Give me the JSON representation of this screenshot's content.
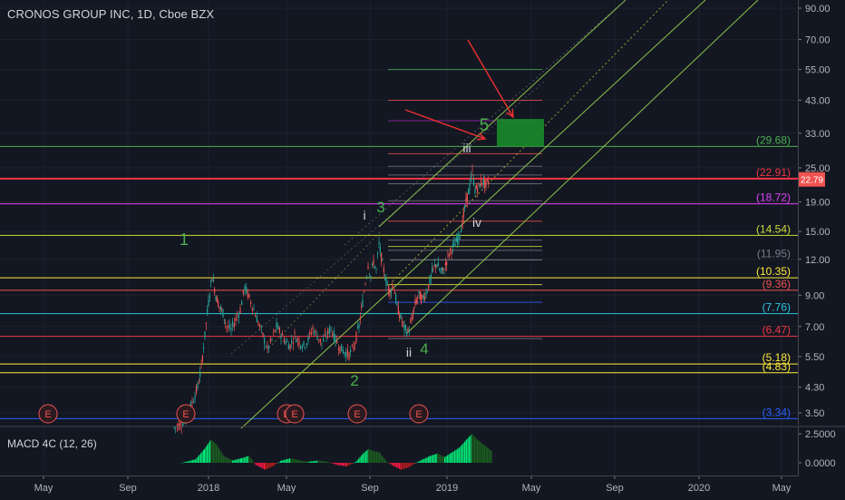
{
  "header": {
    "title": "CRONOS GROUP INC, 1D, Cboe BZX"
  },
  "macd_panel": {
    "title": "MACD 4C (12, 26)",
    "ticks": [
      "2.5000",
      "0.0000"
    ]
  },
  "colors": {
    "background": "#131722",
    "candle_up": "#26a69a",
    "candle_down": "#ef5350",
    "channel": "#8bc34a",
    "target_box": "#1b8a2a",
    "arrow": "#ef2f2f",
    "last_price_badge": "#ef5350"
  },
  "chart_data": {
    "type": "candlestick",
    "scale": "log",
    "price_axis_ticks": [
      "90.00",
      "70.00",
      "55.00",
      "43.00",
      "33.00",
      "25.00",
      "19.00",
      "15.00",
      "12.00",
      "9.00",
      "7.00",
      "5.50",
      "4.30",
      "3.50"
    ],
    "time_axis_ticks": [
      "May",
      "Sep",
      "2018",
      "May",
      "Sep",
      "2019",
      "May",
      "Sep",
      "2020",
      "May"
    ],
    "last_price": "22.79",
    "horizontal_levels": [
      {
        "label": "(29.68)",
        "value": 29.68,
        "color": "#4caf50"
      },
      {
        "label": "(22.91)",
        "value": 22.91,
        "color": "#f23645"
      },
      {
        "label": "(18.72)",
        "value": 18.72,
        "color": "#e040fb"
      },
      {
        "label": "(14.54)",
        "value": 14.54,
        "color": "#cddc39"
      },
      {
        "label": "(11.95)",
        "value": 11.95,
        "color": "#787b86"
      },
      {
        "label": "(10.35)",
        "value": 10.35,
        "color": "#ffeb3b"
      },
      {
        "label": "(9.36)",
        "value": 9.36,
        "color": "#ef5350"
      },
      {
        "label": "(7.76)",
        "value": 7.76,
        "color": "#26c6da"
      },
      {
        "label": "(6.47)",
        "value": 6.47,
        "color": "#f23645"
      },
      {
        "label": "(5.18)",
        "value": 5.18,
        "color": "#ffeb3b"
      },
      {
        "label": "(4.83)",
        "value": 4.83,
        "color": "#ffeb3b"
      },
      {
        "label": "(3.34)",
        "value": 3.34,
        "color": "#2962ff"
      }
    ],
    "wave_labels": [
      {
        "text": "1",
        "color": "#4caf50"
      },
      {
        "text": "2",
        "color": "#4caf50"
      },
      {
        "text": "3",
        "color": "#4caf50"
      },
      {
        "text": "4",
        "color": "#4caf50"
      },
      {
        "text": "5",
        "color": "#4caf50"
      },
      {
        "text": "i",
        "color": "#d1d4dc"
      },
      {
        "text": "ii",
        "color": "#d1d4dc"
      },
      {
        "text": "iii",
        "color": "#d1d4dc"
      },
      {
        "text": "iv",
        "color": "#d1d4dc"
      }
    ],
    "event_markers": [
      "E",
      "E",
      "E",
      "E",
      "E",
      "E"
    ]
  }
}
